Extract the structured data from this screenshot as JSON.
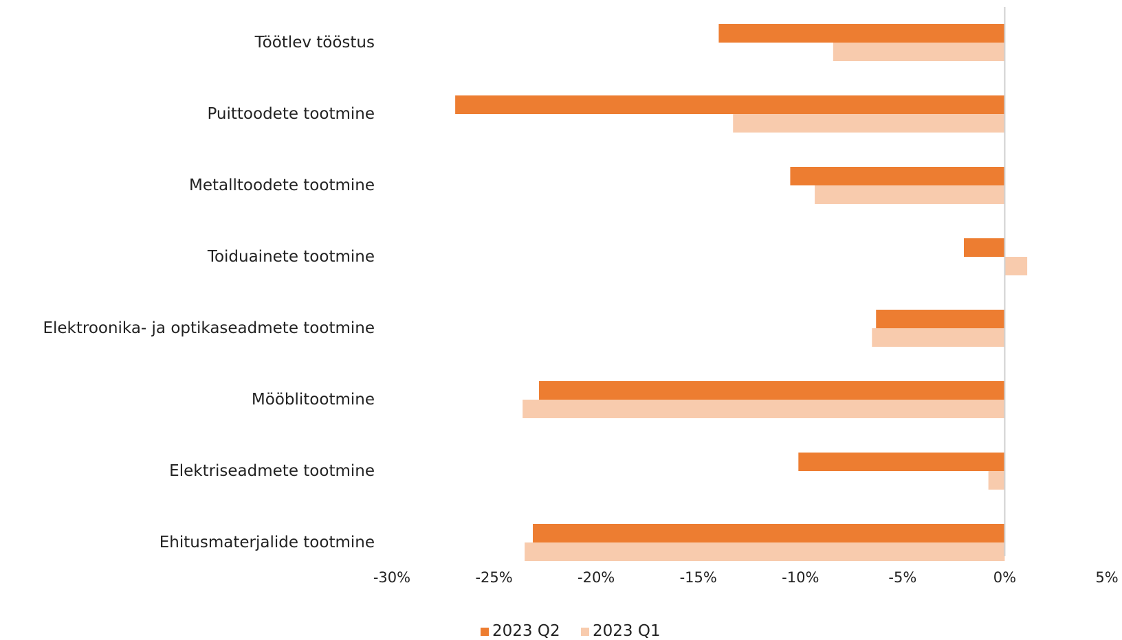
{
  "chart_data": {
    "type": "bar",
    "orientation": "horizontal",
    "categories": [
      "Töötlev tööstus",
      "Puittoodete tootmine",
      "Metalltoodete tootmine",
      "Toiduainete tootmine",
      "Elektroonika- ja optikaseadmete tootmine",
      "Mööblitootmine",
      "Elektriseadmete tootmine",
      "Ehitusmaterjalide tootmine"
    ],
    "series": [
      {
        "name": "2023 Q2",
        "color": "#ED7D31",
        "values": [
          -14.0,
          -26.9,
          -10.5,
          -2.0,
          -6.3,
          -22.8,
          -10.1,
          -23.1
        ]
      },
      {
        "name": "2023 Q1",
        "color": "#F8CBAD",
        "values": [
          -8.4,
          -13.3,
          -9.3,
          1.1,
          -6.5,
          -23.6,
          -0.8,
          -23.5
        ]
      }
    ],
    "xlim": [
      -30,
      5
    ],
    "xticks": [
      -30,
      -25,
      -20,
      -15,
      -10,
      -5,
      0,
      5
    ],
    "xtick_labels": [
      "-30%",
      "-25%",
      "-20%",
      "-15%",
      "-10%",
      "-5%",
      "0%",
      "5%"
    ],
    "grid": false,
    "legend_position": "bottom"
  }
}
